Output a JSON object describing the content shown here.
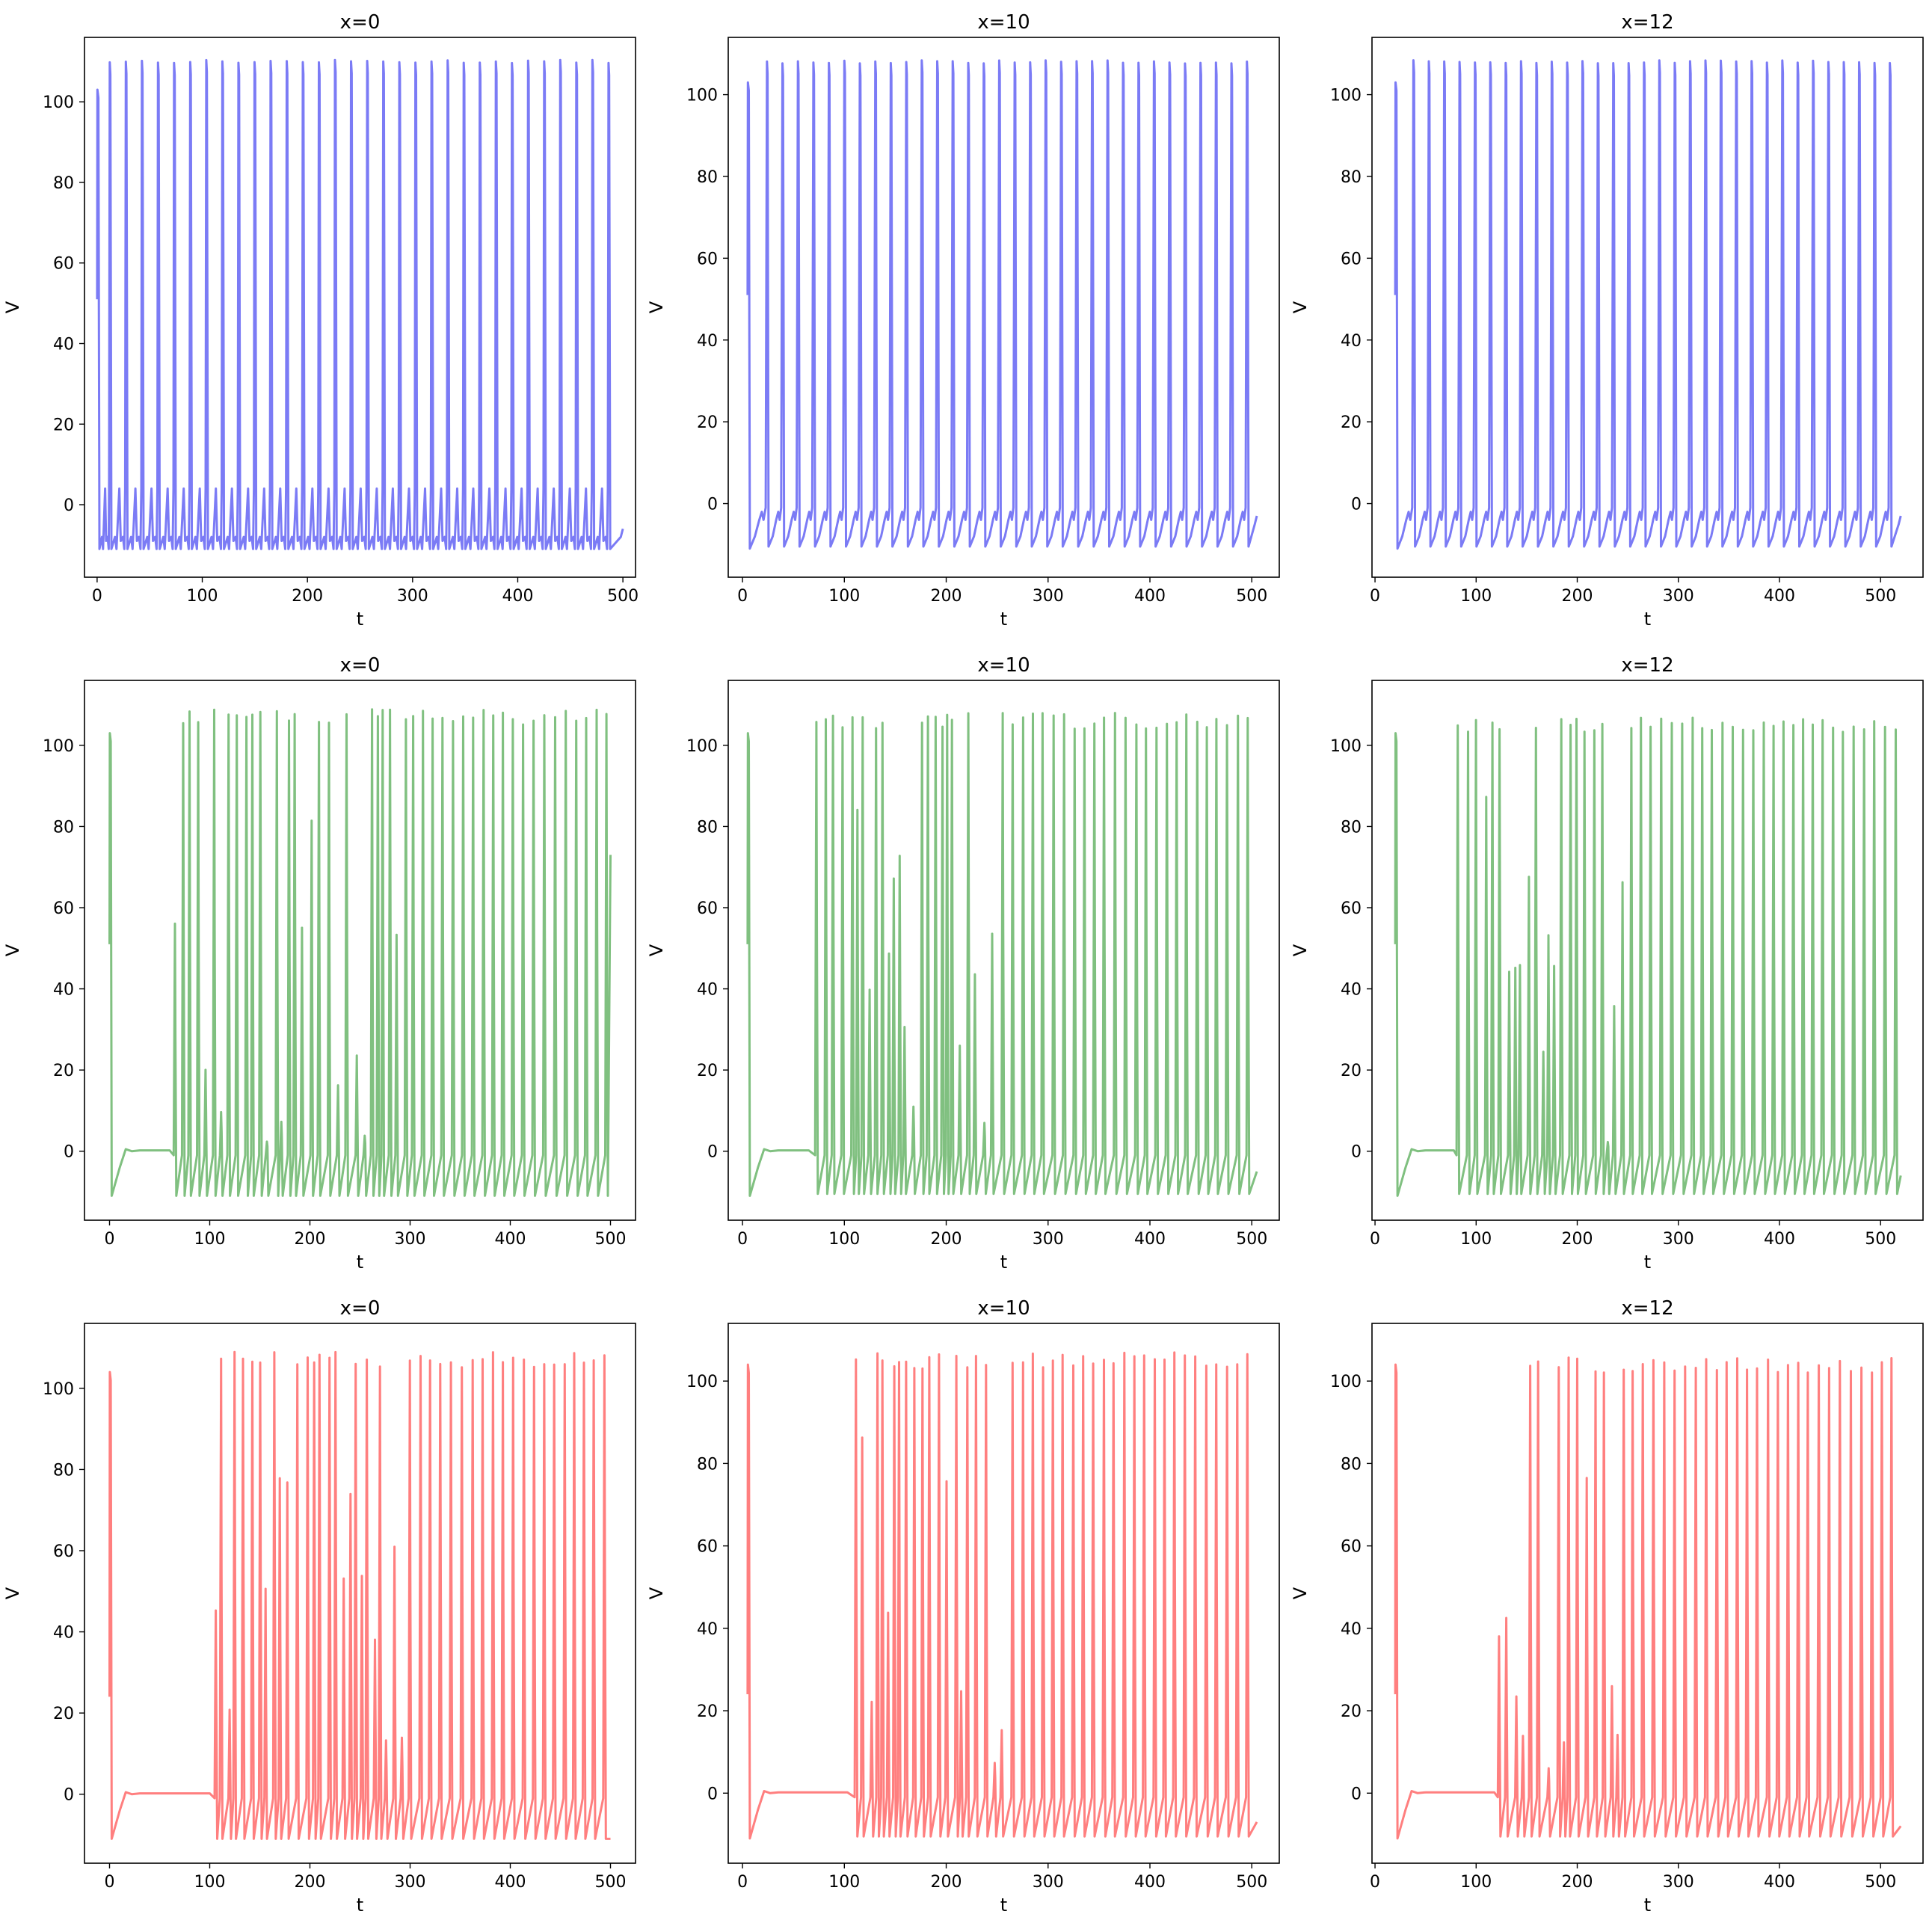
{
  "chart_data": [
    {
      "type": "line",
      "title": "x=0",
      "xlabel": "t",
      "ylabel": "V",
      "xlim": [
        -12,
        512
      ],
      "ylim": [
        -18,
        116
      ],
      "xticks": [
        0,
        100,
        200,
        300,
        400,
        500
      ],
      "yticks": [
        0,
        20,
        40,
        60,
        80,
        100
      ],
      "x_range": [
        0,
        500
      ],
      "color": "#7b7bf5",
      "series": [
        {
          "kind": "regular",
          "peak": 110,
          "trough": -11,
          "period": 15.3,
          "start": 12,
          "sub_spikes": true,
          "end_value": -6
        }
      ],
      "grid": false
    },
    {
      "type": "line",
      "title": "x=10",
      "xlabel": "t",
      "ylabel": "V",
      "xlim": [
        -14,
        527
      ],
      "ylim": [
        -18,
        114
      ],
      "xticks": [
        0,
        100,
        200,
        300,
        400,
        500
      ],
      "yticks": [
        0,
        20,
        40,
        60,
        80,
        100
      ],
      "x_range": [
        5,
        505
      ],
      "color": "#7b7bf5",
      "series": [
        {
          "kind": "regular",
          "peak": 108,
          "trough": -10.5,
          "period": 15.2,
          "start": 24,
          "sub_spikes": false,
          "end_value": -3
        }
      ],
      "grid": false
    },
    {
      "type": "line",
      "title": "x=12",
      "xlabel": "t",
      "ylabel": "V",
      "xlim": [
        -3,
        542
      ],
      "ylim": [
        -18,
        114
      ],
      "xticks": [
        0,
        100,
        200,
        300,
        400,
        500
      ],
      "yticks": [
        0,
        20,
        40,
        60,
        80,
        100
      ],
      "x_range": [
        20,
        520
      ],
      "color": "#7b7bf5",
      "series": [
        {
          "kind": "regular",
          "peak": 108,
          "trough": -10.5,
          "period": 15.2,
          "start": 38,
          "sub_spikes": false,
          "end_value": -3
        }
      ],
      "grid": false
    },
    {
      "type": "line",
      "title": "x=0",
      "xlabel": "t",
      "ylabel": "V",
      "xlim": [
        -25,
        525
      ],
      "ylim": [
        -17,
        116
      ],
      "xticks": [
        0,
        100,
        200,
        300,
        400,
        500
      ],
      "yticks": [
        0,
        20,
        40,
        60,
        80,
        100
      ],
      "x_range": [
        0,
        500
      ],
      "color": "#80c080",
      "series": [
        {
          "kind": "irregular",
          "onset": 60,
          "peak": 109,
          "trough": -11,
          "end_value": 73
        }
      ],
      "grid": false
    },
    {
      "type": "line",
      "title": "x=10",
      "xlabel": "t",
      "ylabel": "V",
      "xlim": [
        -14,
        527
      ],
      "ylim": [
        -17,
        116
      ],
      "xticks": [
        0,
        100,
        200,
        300,
        400,
        500
      ],
      "yticks": [
        0,
        20,
        40,
        60,
        80,
        100
      ],
      "x_range": [
        5,
        505
      ],
      "color": "#80c080",
      "series": [
        {
          "kind": "irregular",
          "onset": 65,
          "peak": 108,
          "trough": -10.5,
          "end_value": -5
        }
      ],
      "grid": false
    },
    {
      "type": "line",
      "title": "x=12",
      "xlabel": "t",
      "ylabel": "V",
      "xlim": [
        -3,
        542
      ],
      "ylim": [
        -17,
        116
      ],
      "xticks": [
        0,
        100,
        200,
        300,
        400,
        500
      ],
      "yticks": [
        0,
        20,
        40,
        60,
        80,
        100
      ],
      "x_range": [
        20,
        520
      ],
      "color": "#80c080",
      "series": [
        {
          "kind": "irregular",
          "onset": 78,
          "peak": 107,
          "trough": -10.5,
          "end_value": -6
        }
      ],
      "grid": false
    },
    {
      "type": "line",
      "title": "x=0",
      "xlabel": "t",
      "ylabel": "V",
      "xlim": [
        -25,
        525
      ],
      "ylim": [
        -17,
        116
      ],
      "xticks": [
        0,
        100,
        200,
        300,
        400,
        500
      ],
      "yticks": [
        0,
        20,
        40,
        60,
        80,
        100
      ],
      "x_range": [
        0,
        500
      ],
      "color": "#ff7f7f",
      "series": [
        {
          "kind": "irregular",
          "onset": 100,
          "peak": 109,
          "trough": -11,
          "end_value": -11
        }
      ],
      "grid": false
    },
    {
      "type": "line",
      "title": "x=10",
      "xlabel": "t",
      "ylabel": "V",
      "xlim": [
        -14,
        527
      ],
      "ylim": [
        -17,
        114
      ],
      "xticks": [
        0,
        100,
        200,
        300,
        400,
        500
      ],
      "yticks": [
        0,
        20,
        40,
        60,
        80,
        100
      ],
      "x_range": [
        5,
        505
      ],
      "color": "#ff7f7f",
      "series": [
        {
          "kind": "irregular",
          "onset": 103,
          "peak": 107,
          "trough": -10.5,
          "end_value": -7
        }
      ],
      "grid": false
    },
    {
      "type": "line",
      "title": "x=12",
      "xlabel": "t",
      "ylabel": "V",
      "xlim": [
        -3,
        542
      ],
      "ylim": [
        -17,
        114
      ],
      "xticks": [
        0,
        100,
        200,
        300,
        400,
        500
      ],
      "yticks": [
        0,
        20,
        40,
        60,
        80,
        100
      ],
      "x_range": [
        20,
        520
      ],
      "color": "#ff7f7f",
      "series": [
        {
          "kind": "irregular",
          "onset": 118,
          "peak": 106,
          "trough": -10.5,
          "end_value": -8
        }
      ],
      "grid": false
    }
  ]
}
